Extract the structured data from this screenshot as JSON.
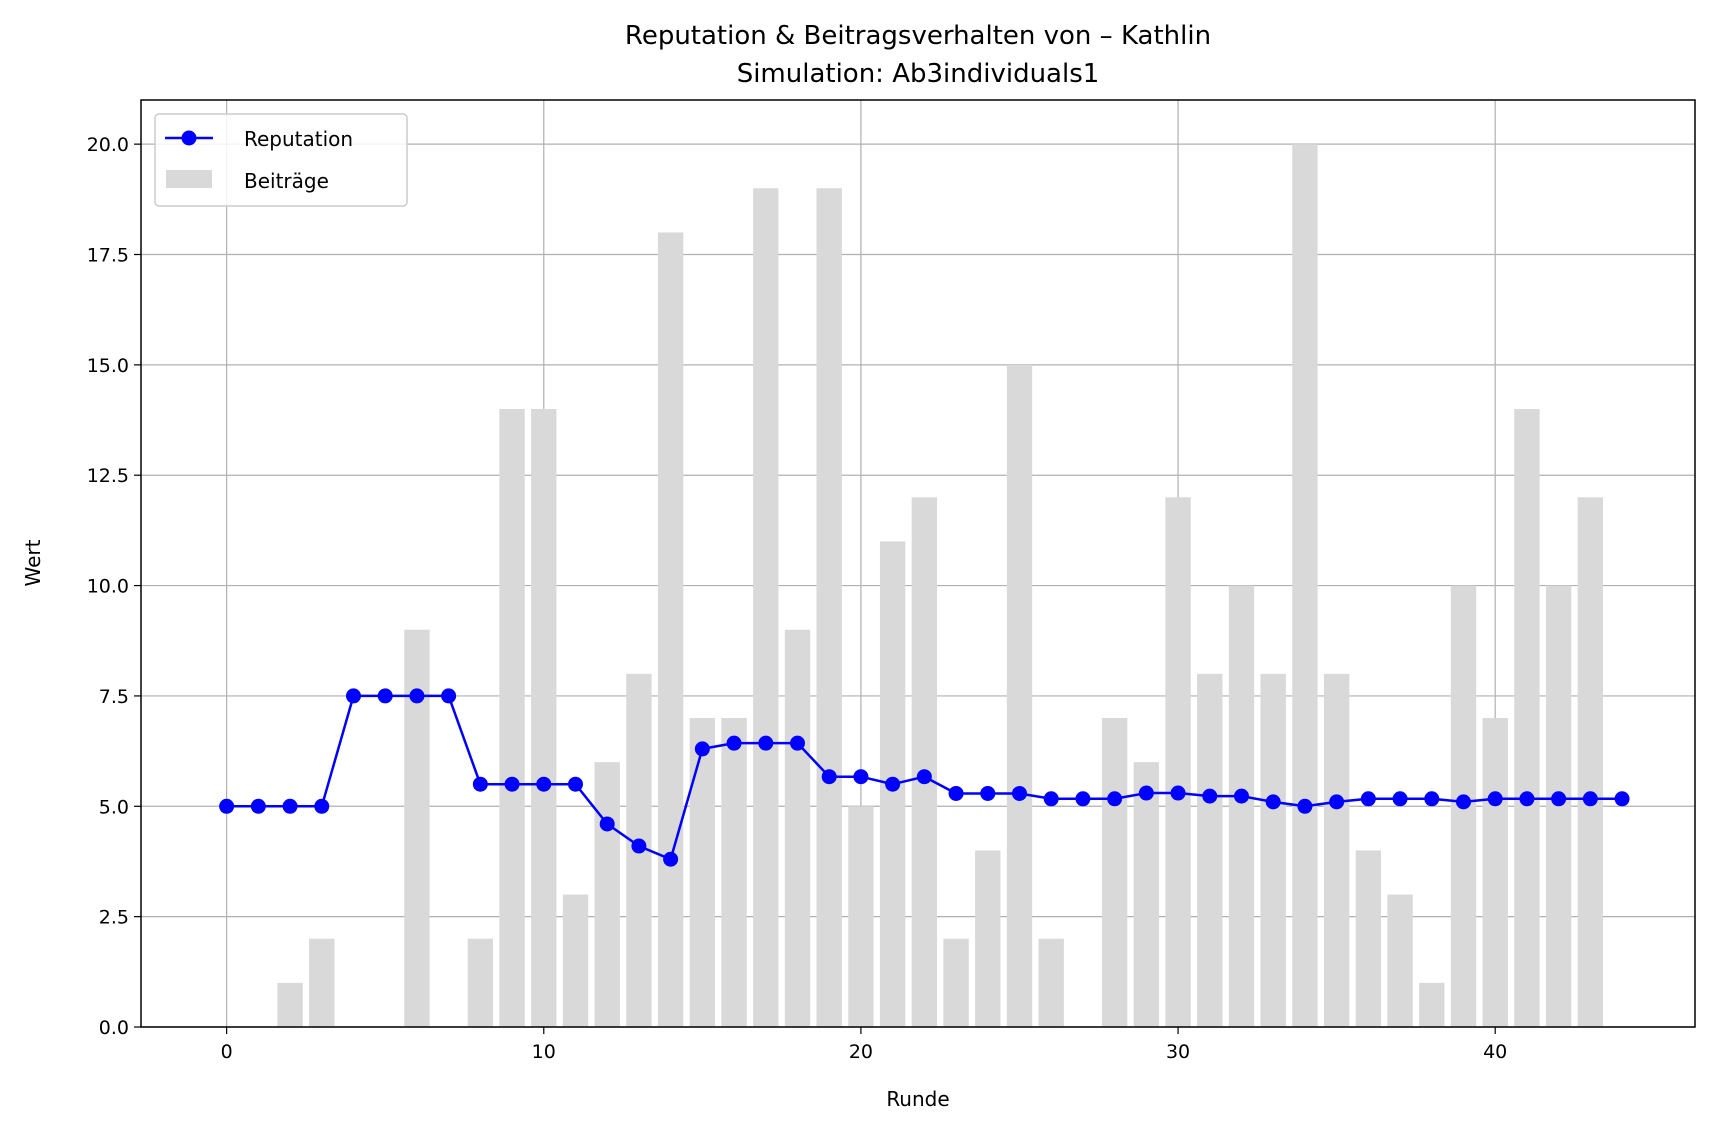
{
  "colors": {
    "reputation": "#0000ff",
    "contributions": "#d9d9d9",
    "grid": "#b0b0b0",
    "axes": "#000000"
  },
  "chart_data": {
    "type": "bar",
    "title": "Reputation & Beitragsverhalten von – Kathlin",
    "subtitle": "Simulation: Ab3individuals1",
    "xlabel": "Runde",
    "ylabel": "Wert",
    "xlim": [
      -2.7,
      46.3
    ],
    "ylim": [
      0,
      21
    ],
    "x_ticks": [
      0,
      10,
      20,
      30,
      40
    ],
    "x_tick_labels": [
      "0",
      "10",
      "20",
      "30",
      "40"
    ],
    "y_ticks": [
      0,
      2.5,
      5,
      7.5,
      10,
      12.5,
      15,
      17.5,
      20
    ],
    "y_tick_labels": [
      "0.0",
      "2.5",
      "5.0",
      "7.5",
      "10.0",
      "12.5",
      "15.0",
      "17.5",
      "20.0"
    ],
    "grid": true,
    "legend_position": "upper-left",
    "legend": [
      {
        "label": "Reputation",
        "kind": "line-marker"
      },
      {
        "label": "Beiträge",
        "kind": "bar"
      }
    ],
    "x": [
      0,
      1,
      2,
      3,
      4,
      5,
      6,
      7,
      8,
      9,
      10,
      11,
      12,
      13,
      14,
      15,
      16,
      17,
      18,
      19,
      20,
      21,
      22,
      23,
      24,
      25,
      26,
      27,
      28,
      29,
      30,
      31,
      32,
      33,
      34,
      35,
      36,
      37,
      38,
      39,
      40,
      41,
      42,
      43,
      44
    ],
    "series": [
      {
        "name": "Beiträge",
        "type": "bar",
        "values": [
          0,
          0,
          1,
          2,
          0,
          0,
          9,
          0,
          2,
          14,
          14,
          3,
          6,
          8,
          18,
          7,
          7,
          19,
          9,
          19,
          5,
          11,
          12,
          2,
          4,
          15,
          2,
          0,
          7,
          6,
          12,
          8,
          10,
          8,
          20,
          8,
          4,
          3,
          1,
          10,
          7,
          14,
          10,
          12,
          0
        ]
      },
      {
        "name": "Reputation",
        "type": "line",
        "values": [
          5.0,
          5.0,
          5.0,
          5.0,
          7.5,
          7.5,
          7.5,
          7.5,
          5.5,
          5.5,
          5.5,
          5.5,
          4.6,
          4.1,
          3.8,
          6.3,
          6.43,
          6.43,
          6.43,
          5.67,
          5.67,
          5.5,
          5.67,
          5.29,
          5.29,
          5.29,
          5.17,
          5.17,
          5.17,
          5.3,
          5.3,
          5.23,
          5.23,
          5.1,
          5.0,
          5.1,
          5.17,
          5.17,
          5.17,
          5.1,
          5.17,
          5.17,
          5.17,
          5.17,
          5.17
        ]
      }
    ]
  }
}
